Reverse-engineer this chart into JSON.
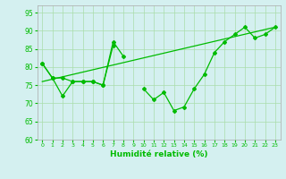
{
  "line1_x": [
    0,
    1,
    2,
    3,
    4,
    5,
    6,
    7,
    8,
    9,
    10,
    11,
    12,
    13,
    14,
    15,
    16,
    17,
    18,
    19,
    20,
    21,
    22,
    23
  ],
  "line1_y": [
    81,
    77,
    72,
    76,
    76,
    76,
    75,
    87,
    83,
    null,
    74,
    71,
    73,
    68,
    69,
    74,
    78,
    84,
    87,
    89,
    91,
    88,
    89,
    91
  ],
  "line2_x": [
    0,
    1,
    2,
    3,
    4,
    5,
    6,
    7
  ],
  "line2_y": [
    81,
    77,
    77,
    76,
    76,
    76,
    75,
    86
  ],
  "line3_x": [
    0,
    23
  ],
  "line3_y": [
    76,
    91
  ],
  "ylim": [
    60,
    97
  ],
  "xlim": [
    -0.5,
    23.5
  ],
  "yticks": [
    60,
    65,
    70,
    75,
    80,
    85,
    90,
    95
  ],
  "xticks": [
    0,
    1,
    2,
    3,
    4,
    5,
    6,
    7,
    8,
    9,
    10,
    11,
    12,
    13,
    14,
    15,
    16,
    17,
    18,
    19,
    20,
    21,
    22,
    23
  ],
  "xlabel": "Humidité relative (%)",
  "line_color": "#00bb00",
  "bg_color": "#d4f0f0",
  "grid_color": "#aaddaa",
  "marker": "D",
  "marker_size": 2,
  "linewidth": 0.9
}
